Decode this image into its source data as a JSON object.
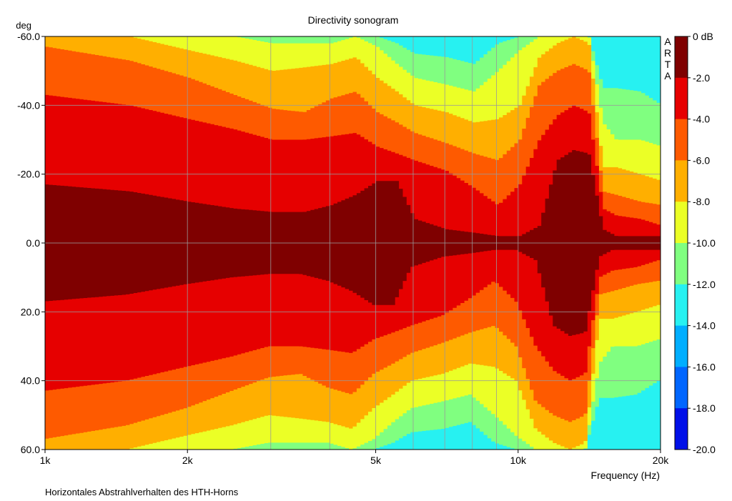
{
  "chart_data": {
    "type": "heatmap",
    "title": "Directivity sonogram",
    "xlabel": "Frequency (Hz)",
    "ylabel": "deg",
    "footer": "Horizontales Abstrahlverhalten des HTH-Horns",
    "watermark": "ARTA",
    "x_scale": "log",
    "xlim": [
      1000,
      20000
    ],
    "ylim": [
      -60,
      60
    ],
    "grid": true,
    "x_ticks": [
      {
        "value": 1000,
        "label": "1k"
      },
      {
        "value": 2000,
        "label": "2k"
      },
      {
        "value": 5000,
        "label": "5k"
      },
      {
        "value": 10000,
        "label": "10k"
      },
      {
        "value": 20000,
        "label": "20k"
      }
    ],
    "y_ticks": [
      {
        "value": -60,
        "label": "-60.0"
      },
      {
        "value": -40,
        "label": "-40.0"
      },
      {
        "value": -20,
        "label": "-20.0"
      },
      {
        "value": 0,
        "label": "0.0"
      },
      {
        "value": 20,
        "label": "20.0"
      },
      {
        "value": 40,
        "label": "40.0"
      },
      {
        "value": 60,
        "label": "60.0"
      }
    ],
    "colorbar": {
      "range": [
        -20,
        0
      ],
      "step": 2,
      "labels": [
        "0 dB",
        "-2.0",
        "-4.0",
        "-6.0",
        "-8.0",
        "-10.0",
        "-12.0",
        "-14.0",
        "-16.0",
        "-18.0",
        "-20.0"
      ],
      "colors": [
        "#7f0000",
        "#e60000",
        "#fe5a00",
        "#ffaf00",
        "#ebff26",
        "#80ff80",
        "#27f1f1",
        "#00aeff",
        "#0066ff",
        "#0010e8"
      ]
    },
    "contour_frequencies": [
      1000,
      1500,
      2000,
      2500,
      3000,
      3500,
      4000,
      4500,
      5000,
      5500,
      6000,
      7000,
      8000,
      9000,
      10000,
      11000,
      12000,
      13000,
      14000,
      15000,
      16000,
      18000,
      20000
    ],
    "contours_deg": {
      "-2": [
        17,
        15,
        12,
        10,
        9,
        9,
        11,
        14,
        18,
        18,
        7,
        4,
        3,
        2,
        2,
        5,
        24,
        27,
        26,
        4,
        2,
        2,
        2
      ],
      "-4": [
        43,
        40,
        36,
        33,
        30,
        30,
        31,
        32,
        28,
        26,
        24,
        21,
        16,
        11,
        17,
        30,
        37,
        40,
        38,
        10,
        8,
        7,
        5
      ],
      "-6": [
        57,
        53,
        48,
        43,
        39,
        38,
        42,
        44,
        38,
        35,
        32,
        29,
        26,
        24,
        30,
        46,
        50,
        52,
        50,
        15,
        14,
        12,
        11
      ],
      "-8": [
        60,
        60,
        56,
        53,
        50,
        51,
        52,
        54,
        48,
        44,
        40,
        38,
        35,
        36,
        40,
        54,
        58,
        60,
        58,
        22,
        22,
        20,
        18
      ],
      "-10": [
        60,
        60,
        60,
        60,
        58,
        58,
        58,
        60,
        57,
        52,
        48,
        46,
        44,
        50,
        56,
        60,
        60,
        60,
        60,
        35,
        30,
        30,
        28
      ],
      "-12": [
        60,
        60,
        60,
        60,
        60,
        60,
        60,
        60,
        60,
        58,
        55,
        54,
        52,
        58,
        60,
        60,
        60,
        60,
        60,
        45,
        45,
        44,
        40
      ]
    }
  }
}
